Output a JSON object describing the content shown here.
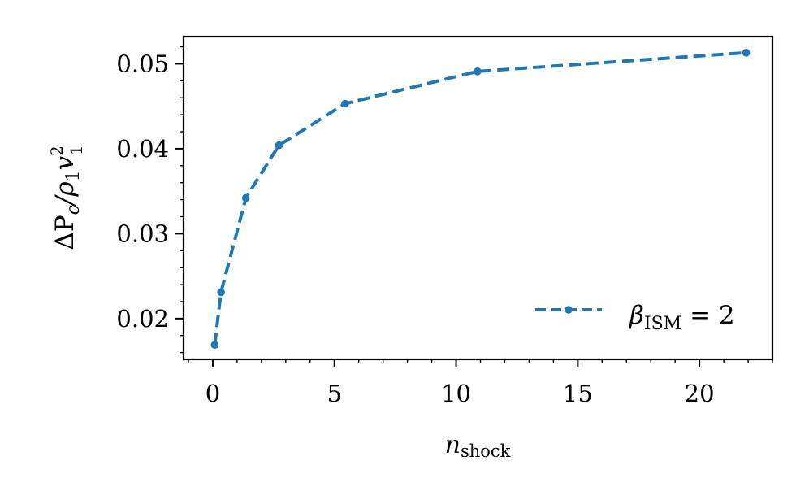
{
  "chart_data": {
    "type": "line",
    "xlabel": {
      "main": "n",
      "sub": "shock"
    },
    "ylabel": {
      "text": "ΔP",
      "sub_c": "c",
      "slash": "/ρ",
      "sub_1a": "1",
      "v": "v",
      "sup_2": "2",
      "sub_1b": "1"
    },
    "xlim": [
      -1.2,
      23.0
    ],
    "ylim": [
      0.0152,
      0.0532
    ],
    "x_ticks": [
      0,
      5,
      10,
      15,
      20
    ],
    "x_tick_labels": [
      "0",
      "5",
      "10",
      "15",
      "20"
    ],
    "y_ticks": [
      0.02,
      0.03,
      0.04,
      0.05
    ],
    "y_tick_labels": [
      "0.02",
      "0.03",
      "0.04",
      "0.05"
    ],
    "grid": false,
    "legend_position": "lower-right",
    "color": "#1f77b4",
    "series": [
      {
        "name": "β_ISM = 2",
        "legend": {
          "beta": "β",
          "sub": "ISM",
          "rest": " = 2"
        },
        "line_style": "dashed",
        "marker": "dot",
        "x": [
          0.08,
          0.34,
          1.36,
          2.72,
          5.44,
          10.88,
          21.92
        ],
        "y": [
          0.0169,
          0.0231,
          0.0342,
          0.0404,
          0.0453,
          0.0491,
          0.0513
        ]
      }
    ]
  }
}
